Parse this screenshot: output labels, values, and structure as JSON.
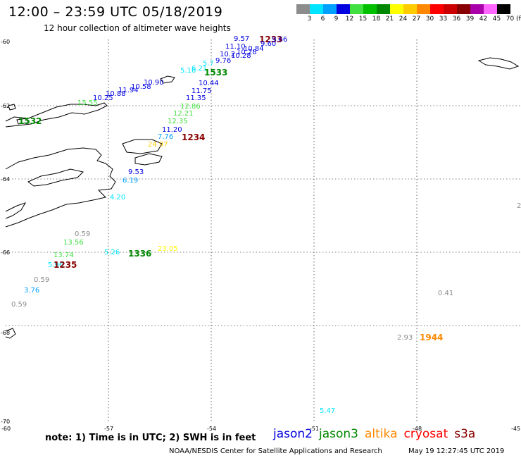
{
  "header": {
    "title": "12:00 – 23:59 UTC 05/18/2019",
    "subtitle": "12 hour collection of altimeter wave heights"
  },
  "legend": {
    "labels": [
      "3",
      "6",
      "9",
      "12",
      "15",
      "18",
      "21",
      "24",
      "27",
      "30",
      "33",
      "36",
      "39",
      "42",
      "45",
      "70"
    ],
    "colors": [
      "#8c8c8c",
      "#00e5ff",
      "#00a0ff",
      "#0000e0",
      "#40e040",
      "#00c000",
      "#008800",
      "#ffff00",
      "#ffcc00",
      "#ff8800",
      "#ff0000",
      "#cc0000",
      "#880000",
      "#aa00aa",
      "#ff66ff",
      "#000000"
    ],
    "unit": "(ft)"
  },
  "axes": {
    "lat_labels": [
      "-60",
      "-62",
      "-64",
      "-66",
      "-68",
      "-70"
    ],
    "lon_labels": [
      "-60",
      "-57",
      "-54",
      "-51",
      "-48",
      "-45"
    ]
  },
  "observations": [
    {
      "text": "9.57",
      "color": "#0000e0"
    },
    {
      "text": "1233",
      "color": "#880000",
      "big": true
    },
    {
      "text": "9.66",
      "color": "#0000e0"
    },
    {
      "text": "9.60",
      "color": "#0000e0"
    },
    {
      "text": "11.10",
      "color": "#0000e0"
    },
    {
      "text": "10.84",
      "color": "#0000e0"
    },
    {
      "text": "10.28",
      "color": "#0000e0"
    },
    {
      "text": "10.2",
      "color": "#0000e0"
    },
    {
      "text": "10.28",
      "color": "#0000e0"
    },
    {
      "text": "9.76",
      "color": "#0000e0"
    },
    {
      "text": "5.16",
      "color": "#00e5ff"
    },
    {
      "text": "6.21",
      "color": "#00e5ff"
    },
    {
      "text": "5.7",
      "color": "#00e5ff"
    },
    {
      "text": "1533",
      "color": "#008800",
      "big": true
    },
    {
      "text": "10.44",
      "color": "#0000e0"
    },
    {
      "text": "10.90",
      "color": "#0000e0"
    },
    {
      "text": "10.58",
      "color": "#0000e0"
    },
    {
      "text": "11.94",
      "color": "#0000e0"
    },
    {
      "text": "10.88",
      "color": "#0000e0"
    },
    {
      "text": "10.25",
      "color": "#0000e0"
    },
    {
      "text": "15.55",
      "color": "#40e040"
    },
    {
      "text": "11.75",
      "color": "#0000e0"
    },
    {
      "text": "11.35",
      "color": "#0000e0"
    },
    {
      "text": "12.86",
      "color": "#40e040"
    },
    {
      "text": "12.21",
      "color": "#40e040"
    },
    {
      "text": "12.35",
      "color": "#40e040"
    },
    {
      "text": "11.20",
      "color": "#0000e0"
    },
    {
      "text": "7.76",
      "color": "#00a0ff"
    },
    {
      "text": "1234",
      "color": "#880000",
      "big": true
    },
    {
      "text": "24.97",
      "color": "#ffcc00"
    },
    {
      "text": "9.53",
      "color": "#0000e0"
    },
    {
      "text": "6.19",
      "color": "#00a0ff"
    },
    {
      "text": "4.20",
      "color": "#00e5ff"
    },
    {
      "text": "1532",
      "color": "#008800",
      "big": true
    },
    {
      "text": "0.59",
      "color": "#8c8c8c"
    },
    {
      "text": "13.56",
      "color": "#40e040"
    },
    {
      "text": "13.74",
      "color": "#40e040"
    },
    {
      "text": "5.26",
      "color": "#00e5ff"
    },
    {
      "text": "1336",
      "color": "#008800",
      "big": true
    },
    {
      "text": "23.05",
      "color": "#ffff00"
    },
    {
      "text": "5.96",
      "color": "#00e5ff"
    },
    {
      "text": "1235",
      "color": "#880000",
      "big": true
    },
    {
      "text": "0.59",
      "color": "#8c8c8c"
    },
    {
      "text": "3.76",
      "color": "#00a0ff"
    },
    {
      "text": "0.59",
      "color": "#8c8c8c"
    },
    {
      "text": "0.41",
      "color": "#8c8c8c"
    },
    {
      "text": "2.93",
      "color": "#8c8c8c"
    },
    {
      "text": "1944",
      "color": "#ff8800",
      "big": true
    },
    {
      "text": "5.47",
      "color": "#00e5ff"
    },
    {
      "text": "2",
      "color": "#8c8c8c"
    }
  ],
  "footer": {
    "note": "note:  1) Time is in UTC;  2) SWH is in feet",
    "satellites": [
      {
        "name": "jason2",
        "color": "#0000e0"
      },
      {
        "name": "jason3",
        "color": "#008800"
      },
      {
        "name": "altika",
        "color": "#ff8800"
      },
      {
        "name": "cryosat",
        "color": "#ff0000"
      },
      {
        "name": "s3a",
        "color": "#880000"
      }
    ],
    "credit": "NOAA/NESDIS Center for Satellite Applications and Research",
    "generated": "May 19 12:27:45 UTC 2019"
  }
}
